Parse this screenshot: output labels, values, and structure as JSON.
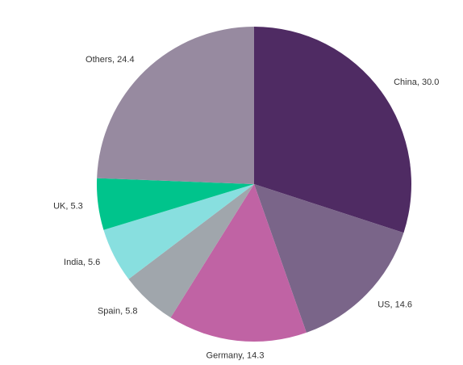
{
  "chart_data": {
    "type": "pie",
    "title": "",
    "slices": [
      {
        "label": "China, 30.0",
        "name": "China",
        "value": 30.0,
        "color": "#4f2b63"
      },
      {
        "label": "US, 14.6",
        "name": "US",
        "value": 14.6,
        "color": "#7a6589"
      },
      {
        "label": "Germany, 14.3",
        "name": "Germany",
        "value": 14.3,
        "color": "#c063a4"
      },
      {
        "label": "Spain, 5.8",
        "name": "Spain",
        "value": 5.8,
        "color": "#a0a6ac"
      },
      {
        "label": "India, 5.6",
        "name": "India",
        "value": 5.6,
        "color": "#88dfdf"
      },
      {
        "label": "UK, 5.3",
        "name": "UK",
        "value": 5.3,
        "color": "#00c48c"
      },
      {
        "label": "Others, 24.4",
        "name": "Others",
        "value": 24.4,
        "color": "#978aa0"
      }
    ],
    "start_angle_deg": 0,
    "direction": "clockwise",
    "legend": "none",
    "labels": "outside"
  }
}
